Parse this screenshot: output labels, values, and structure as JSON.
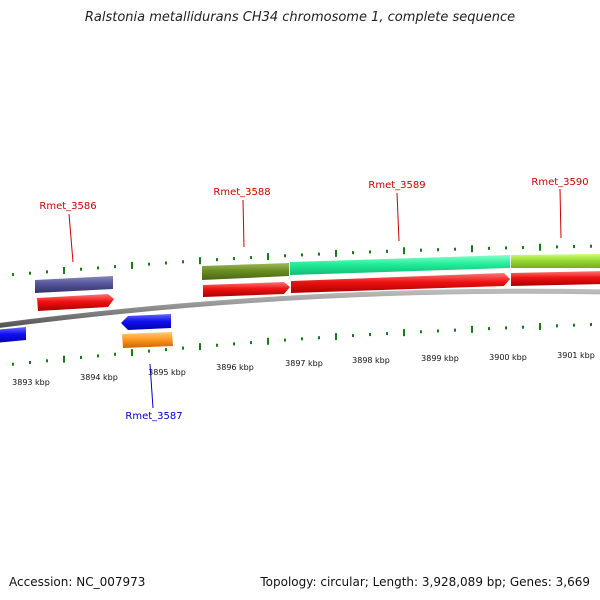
{
  "title": "Ralstonia metallidurans CH34 chromosome 1, complete sequence",
  "footer": {
    "accession": "Accession: NC_007973",
    "summary": "Topology: circular; Length: 3,928,089 bp; Genes: 3,669"
  },
  "colors": {
    "backbone": "#8c8c8c",
    "tick": "#1a7a1a",
    "forward_label": "#cc0000",
    "reverse_label": "#0000cc",
    "cds_forward": "#ee1111",
    "cds_reverse_orange": "#ff9922",
    "gene_blue": "#1111ee",
    "gene_purple": "#555599",
    "gene_olive": "#6b8e23",
    "gene_aqua": "#22ee99",
    "gene_lime": "#99dd33"
  },
  "scale_labels": [
    "3893 kbp",
    "3894 kbp",
    "3895 kbp",
    "3896 kbp",
    "3897 kbp",
    "3898 kbp",
    "3899 kbp",
    "3900 kbp",
    "3901 kbp"
  ],
  "gene_labels": {
    "rmet_3586": "Rmet_3586",
    "rmet_3587": "Rmet_3587",
    "rmet_3588": "Rmet_3588",
    "rmet_3589": "Rmet_3589",
    "rmet_3590": "Rmet_3590"
  }
}
